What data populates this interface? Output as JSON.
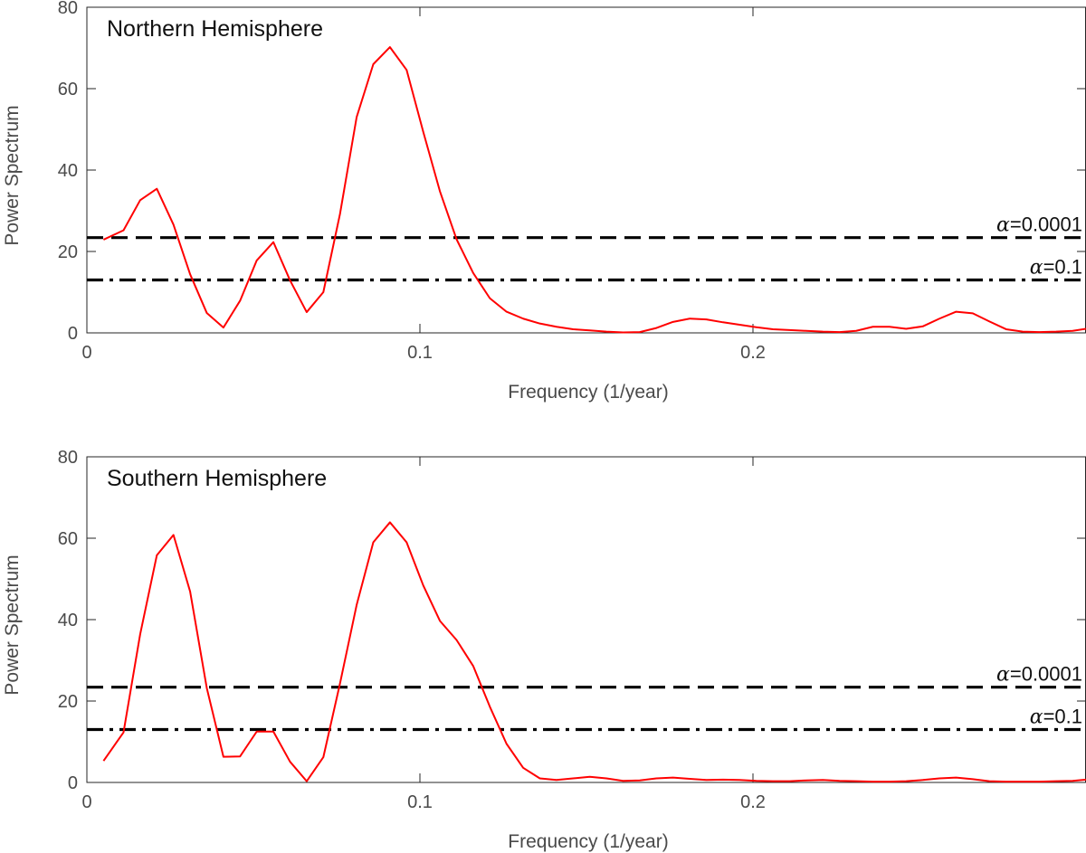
{
  "chart_data": [
    {
      "type": "line",
      "title": "Northern Hemisphere",
      "xlabel": "Frequency (1/year)",
      "ylabel": "Power Spectrum",
      "xlim": [
        0,
        0.3
      ],
      "ylim": [
        0,
        80
      ],
      "xticks": [
        0,
        0.1,
        0.2
      ],
      "xtick_labels": [
        "0",
        "0.1",
        "0.2"
      ],
      "yticks": [
        0,
        20,
        40,
        60,
        80
      ],
      "ytick_labels": [
        "0",
        "20",
        "40",
        "60",
        "80"
      ],
      "grid": false,
      "series": [
        {
          "color": "#ff0000",
          "x": [
            0.005,
            0.011,
            0.016,
            0.021,
            0.026,
            0.031,
            0.036,
            0.041,
            0.046,
            0.051,
            0.056,
            0.061,
            0.066,
            0.071,
            0.076,
            0.081,
            0.086,
            0.091,
            0.096,
            0.101,
            0.106,
            0.111,
            0.116,
            0.121,
            0.126,
            0.131,
            0.136,
            0.141,
            0.146,
            0.151,
            0.156,
            0.161,
            0.166,
            0.171,
            0.176,
            0.181,
            0.186,
            0.191,
            0.196,
            0.201,
            0.206,
            0.211,
            0.216,
            0.221,
            0.226,
            0.231,
            0.236,
            0.241,
            0.246,
            0.251,
            0.256,
            0.261,
            0.266,
            0.271,
            0.276,
            0.281,
            0.286,
            0.291,
            0.296,
            0.3
          ],
          "values": [
            22.9,
            25.2,
            32.6,
            35.4,
            26.6,
            14.4,
            4.9,
            1.3,
            7.9,
            17.8,
            22.3,
            12.9,
            5.1,
            10.0,
            29.2,
            53.0,
            66.0,
            70.2,
            64.6,
            49.4,
            34.8,
            23.0,
            14.7,
            8.5,
            5.2,
            3.5,
            2.3,
            1.5,
            0.9,
            0.6,
            0.3,
            0.1,
            0.2,
            1.2,
            2.7,
            3.5,
            3.3,
            2.6,
            2.0,
            1.4,
            0.9,
            0.7,
            0.5,
            0.3,
            0.2,
            0.5,
            1.5,
            1.5,
            1.0,
            1.6,
            3.5,
            5.2,
            4.8,
            2.8,
            0.9,
            0.3,
            0.2,
            0.3,
            0.5,
            1.0
          ]
        }
      ],
      "thresholds": [
        {
          "label": "=0.0001",
          "symbol": "α",
          "value": 23.4,
          "style": "dashed"
        },
        {
          "label": "=0.1",
          "symbol": "α",
          "value": 13.0,
          "style": "dashdot"
        }
      ]
    },
    {
      "type": "line",
      "title": "Southern Hemisphere",
      "xlabel": "Frequency (1/year)",
      "ylabel": "Power Spectrum",
      "xlim": [
        0,
        0.3
      ],
      "ylim": [
        0,
        80
      ],
      "xticks": [
        0,
        0.1,
        0.2
      ],
      "xtick_labels": [
        "0",
        "0.1",
        "0.2"
      ],
      "yticks": [
        0,
        20,
        40,
        60,
        80
      ],
      "ytick_labels": [
        "0",
        "20",
        "40",
        "60",
        "80"
      ],
      "grid": false,
      "series": [
        {
          "color": "#ff0000",
          "x": [
            0.005,
            0.011,
            0.016,
            0.021,
            0.026,
            0.031,
            0.036,
            0.041,
            0.046,
            0.051,
            0.056,
            0.061,
            0.066,
            0.071,
            0.076,
            0.081,
            0.086,
            0.091,
            0.096,
            0.101,
            0.106,
            0.111,
            0.116,
            0.121,
            0.126,
            0.131,
            0.136,
            0.141,
            0.146,
            0.151,
            0.156,
            0.161,
            0.166,
            0.171,
            0.176,
            0.181,
            0.186,
            0.191,
            0.196,
            0.201,
            0.206,
            0.211,
            0.216,
            0.221,
            0.226,
            0.231,
            0.236,
            0.241,
            0.246,
            0.251,
            0.256,
            0.261,
            0.266,
            0.271,
            0.276,
            0.281,
            0.286,
            0.291,
            0.296,
            0.3
          ],
          "values": [
            5.3,
            12.3,
            36.4,
            55.8,
            60.8,
            46.9,
            23.2,
            6.3,
            6.4,
            12.5,
            12.5,
            5.1,
            0.3,
            6.2,
            24.3,
            43.6,
            59.0,
            63.9,
            59.0,
            48.4,
            39.7,
            35.0,
            28.6,
            18.6,
            9.5,
            3.6,
            1.0,
            0.6,
            1.0,
            1.4,
            1.0,
            0.4,
            0.5,
            1.0,
            1.2,
            0.9,
            0.6,
            0.7,
            0.6,
            0.4,
            0.3,
            0.3,
            0.5,
            0.6,
            0.4,
            0.3,
            0.2,
            0.2,
            0.3,
            0.6,
            1.0,
            1.2,
            0.8,
            0.3,
            0.2,
            0.2,
            0.2,
            0.3,
            0.4,
            0.7
          ]
        }
      ],
      "thresholds": [
        {
          "label": "=0.0001",
          "symbol": "α",
          "value": 23.4,
          "style": "dashed"
        },
        {
          "label": "=0.1",
          "symbol": "α",
          "value": 13.0,
          "style": "dashdot"
        }
      ]
    }
  ]
}
